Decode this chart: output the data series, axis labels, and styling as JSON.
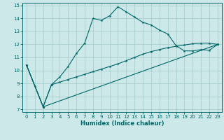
{
  "xlabel": "Humidex (Indice chaleur)",
  "bg_color": "#cce8e8",
  "grid_color": "#aacece",
  "line_color": "#006666",
  "xlim": [
    -0.5,
    23.5
  ],
  "ylim": [
    6.8,
    15.2
  ],
  "yticks": [
    7,
    8,
    9,
    10,
    11,
    12,
    13,
    14,
    15
  ],
  "xticks": [
    0,
    1,
    2,
    3,
    4,
    5,
    6,
    7,
    8,
    9,
    10,
    11,
    12,
    13,
    14,
    15,
    16,
    17,
    18,
    19,
    20,
    21,
    22,
    23
  ],
  "line1_x": [
    0,
    1,
    2,
    3,
    4,
    5,
    6,
    7,
    8,
    9,
    10,
    11,
    12,
    13,
    14,
    15,
    16,
    17,
    18,
    19,
    20,
    21,
    22,
    23
  ],
  "line1_y": [
    10.4,
    8.8,
    7.2,
    8.9,
    9.5,
    10.3,
    11.3,
    12.1,
    14.0,
    13.85,
    14.2,
    14.9,
    14.5,
    14.1,
    13.7,
    13.5,
    13.1,
    12.8,
    11.9,
    11.5,
    11.5,
    11.6,
    11.55,
    12.0
  ],
  "line2_x": [
    0,
    2,
    23
  ],
  "line2_y": [
    10.4,
    7.2,
    12.0
  ],
  "line3_x": [
    0,
    2,
    3,
    4,
    5,
    6,
    7,
    8,
    9,
    10,
    11,
    12,
    13,
    14,
    15,
    16,
    17,
    18,
    19,
    20,
    21,
    22,
    23
  ],
  "line3_y": [
    10.4,
    7.2,
    8.9,
    9.1,
    9.3,
    9.5,
    9.7,
    9.9,
    10.1,
    10.3,
    10.5,
    10.75,
    11.0,
    11.25,
    11.45,
    11.6,
    11.75,
    11.85,
    11.95,
    12.05,
    12.1,
    12.1,
    12.0
  ]
}
